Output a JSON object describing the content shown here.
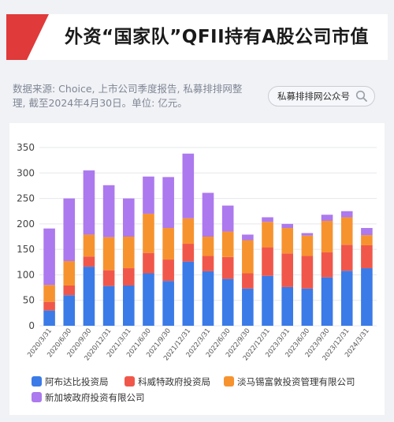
{
  "header": {
    "title": "外资“国家队”QFII持有A股公司市值"
  },
  "source_note": "数据来源: Choice, 上市公司季度报告, 私募排排网整理, 截至2024年4月30日。单位: 亿元。",
  "search": {
    "text": "私募排排网公众号",
    "icon": "search-icon"
  },
  "colors": {
    "title_accent": "#e03a3a",
    "background": "#f1f2f6"
  },
  "chart_data": {
    "type": "bar",
    "stacked": true,
    "categories": [
      "2020/3/31",
      "2020/6/30",
      "2020/9/30",
      "2020/12/31",
      "2021/3/31",
      "2021/6/30",
      "2021/9/30",
      "2021/12/31",
      "2022/3/31",
      "2022/6/30",
      "2022/9/30",
      "2022/12/31",
      "2023/3/31",
      "2023/6/30",
      "2023/9/30",
      "2023/12/31",
      "2024/3/31"
    ],
    "ylim": [
      0,
      350
    ],
    "yticks": [
      0,
      50,
      100,
      150,
      200,
      250,
      300,
      350
    ],
    "grid": true,
    "legend_position": "bottom",
    "series": [
      {
        "name": "阿布达比投资局",
        "color": "#3b7be8",
        "values": [
          30,
          60,
          116,
          78,
          79,
          103,
          88,
          126,
          107,
          92,
          73,
          98,
          76,
          73,
          95,
          108,
          113
        ]
      },
      {
        "name": "科威特政府投资局",
        "color": "#f0574a",
        "values": [
          17,
          19,
          20,
          31,
          34,
          40,
          42,
          35,
          30,
          43,
          30,
          56,
          66,
          64,
          49,
          51,
          45
        ]
      },
      {
        "name": "淡马锡富敦投资管理有限公司",
        "color": "#f7932f",
        "values": [
          33,
          48,
          43,
          65,
          62,
          77,
          62,
          50,
          38,
          50,
          65,
          50,
          50,
          40,
          62,
          54,
          20
        ]
      },
      {
        "name": "新加坡政府投资有限公司",
        "color": "#ac79ee",
        "values": [
          111,
          123,
          126,
          102,
          75,
          73,
          100,
          127,
          86,
          51,
          11,
          9,
          8,
          5,
          12,
          12,
          14
        ]
      }
    ]
  }
}
